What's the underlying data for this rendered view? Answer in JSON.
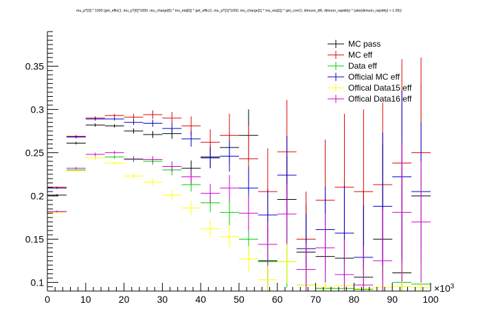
{
  "chart_data": {
    "type": "scatter",
    "title": "mu_pT[0] * 1000 (get_effic(1, mu_pT[0]*1000, mu_charge[0] * mu_eta[0]) * get_effic(1, mu_pT[1]*1000, mu_charge[1] * mu_eta[1]) * get_corr(1, dimuon_dR, dimuon_rapidity) * (abs(dimuon_rapidity) < 1.05))",
    "xlabel": "",
    "ylabel": "",
    "xlim": [
      0,
      100
    ],
    "ylim": [
      0.09,
      0.39
    ],
    "x_exponent_label": "×10",
    "x_exponent_power": "3",
    "x_ticks": [
      "0",
      "10",
      "20",
      "30",
      "40",
      "50",
      "60",
      "70",
      "80",
      "90",
      "100"
    ],
    "y_ticks": [
      "0.1",
      "0.15",
      "0.2",
      "0.25",
      "0.3",
      "0.35"
    ],
    "grid": false,
    "legend_position": "top-right",
    "bin_width": 5,
    "series": [
      {
        "name": "MC pass",
        "color": "#000000",
        "points": [
          [
            2.5,
            0.201,
            0.001
          ],
          [
            7.5,
            0.261,
            0.0015
          ],
          [
            12.5,
            0.282,
            0.002
          ],
          [
            17.5,
            0.281,
            0.002
          ],
          [
            22.5,
            0.275,
            0.003
          ],
          [
            27.5,
            0.271,
            0.004
          ],
          [
            32.5,
            0.272,
            0.006
          ],
          [
            37.5,
            0.232,
            0.009
          ],
          [
            42.5,
            0.245,
            0.013
          ],
          [
            47.5,
            0.256,
            0.018
          ],
          [
            52.5,
            0.27,
            0.03
          ],
          [
            57.5,
            0.125,
            0.04
          ],
          [
            62.5,
            0.196,
            0.05
          ],
          [
            67.5,
            0.135,
            0.055
          ],
          [
            72.5,
            0.13,
            0.07
          ],
          [
            77.5,
            0.128,
            0.09
          ],
          [
            82.5,
            0.106,
            0.1
          ],
          [
            87.5,
            0.15,
            0.11
          ],
          [
            92.5,
            0.111,
            0.12
          ],
          [
            97.5,
            0.2,
            0.13
          ]
        ]
      },
      {
        "name": "MC eff",
        "color": "#e00000",
        "points": [
          [
            2.5,
            0.21,
            0.001
          ],
          [
            7.5,
            0.269,
            0.0015
          ],
          [
            12.5,
            0.29,
            0.002
          ],
          [
            17.5,
            0.293,
            0.002
          ],
          [
            22.5,
            0.291,
            0.004
          ],
          [
            27.5,
            0.294,
            0.005
          ],
          [
            32.5,
            0.29,
            0.007
          ],
          [
            37.5,
            0.281,
            0.011
          ],
          [
            42.5,
            0.262,
            0.015
          ],
          [
            47.5,
            0.27,
            0.025
          ],
          [
            52.5,
            0.243,
            0.038
          ],
          [
            57.5,
            0.205,
            0.05
          ],
          [
            62.5,
            0.251,
            0.06
          ],
          [
            67.5,
            0.15,
            0.055
          ],
          [
            72.5,
            0.195,
            0.07
          ],
          [
            77.5,
            0.21,
            0.085
          ],
          [
            82.5,
            0.205,
            0.095
          ],
          [
            87.5,
            0.213,
            0.095
          ],
          [
            92.5,
            0.238,
            0.12
          ],
          [
            97.5,
            0.25,
            0.11
          ]
        ]
      },
      {
        "name": "Data eff",
        "color": "#00cc00",
        "points": [
          [
            2.5,
            0.182,
            0.001
          ],
          [
            7.5,
            0.23,
            0.0015
          ],
          [
            12.5,
            0.244,
            0.002
          ],
          [
            17.5,
            0.245,
            0.002
          ],
          [
            22.5,
            0.242,
            0.003
          ],
          [
            27.5,
            0.24,
            0.004
          ],
          [
            32.5,
            0.23,
            0.006
          ],
          [
            37.5,
            0.213,
            0.008
          ],
          [
            42.5,
            0.192,
            0.011
          ],
          [
            47.5,
            0.181,
            0.015
          ],
          [
            52.5,
            0.15,
            0.02
          ],
          [
            57.5,
            0.124,
            0.025
          ],
          [
            62.5,
            0.124,
            0.03
          ],
          [
            67.5,
            0.097,
            0.03
          ],
          [
            72.5,
            0.093,
            0.03
          ],
          [
            77.5,
            0.093,
            0.035
          ],
          [
            82.5,
            0.092,
            0.035
          ],
          [
            87.5,
            0.094,
            0.04
          ],
          [
            92.5,
            0.1,
            0.04
          ],
          [
            97.5,
            0.098,
            0.04
          ]
        ]
      },
      {
        "name": "Official MC eff",
        "color": "#0000cc",
        "points": [
          [
            2.5,
            0.209,
            0.001
          ],
          [
            7.5,
            0.268,
            0.0015
          ],
          [
            12.5,
            0.289,
            0.002
          ],
          [
            17.5,
            0.289,
            0.002
          ],
          [
            22.5,
            0.285,
            0.003
          ],
          [
            27.5,
            0.284,
            0.004
          ],
          [
            32.5,
            0.278,
            0.006
          ],
          [
            37.5,
            0.266,
            0.009
          ],
          [
            42.5,
            0.244,
            0.012
          ],
          [
            47.5,
            0.246,
            0.018
          ],
          [
            52.5,
            0.209,
            0.025
          ],
          [
            57.5,
            0.178,
            0.03
          ],
          [
            62.5,
            0.224,
            0.045
          ],
          [
            67.5,
            0.139,
            0.04
          ],
          [
            72.5,
            0.161,
            0.05
          ],
          [
            77.5,
            0.157,
            0.055
          ],
          [
            82.5,
            0.129,
            0.06
          ],
          [
            87.5,
            0.188,
            0.085
          ],
          [
            92.5,
            0.222,
            0.1
          ],
          [
            97.5,
            0.205,
            0.08
          ]
        ]
      },
      {
        "name": "Offical Data15 eff",
        "color": "#ffff00",
        "points": [
          [
            2.5,
            0.181,
            0.001
          ],
          [
            7.5,
            0.229,
            0.0015
          ],
          [
            12.5,
            0.244,
            0.002
          ],
          [
            17.5,
            0.238,
            0.002
          ],
          [
            22.5,
            0.223,
            0.003
          ],
          [
            27.5,
            0.216,
            0.004
          ],
          [
            32.5,
            0.201,
            0.006
          ],
          [
            37.5,
            0.186,
            0.008
          ],
          [
            42.5,
            0.162,
            0.01
          ],
          [
            47.5,
            0.153,
            0.012
          ],
          [
            52.5,
            0.127,
            0.015
          ],
          [
            57.5,
            0.103,
            0.02
          ],
          [
            62.5,
            0.124,
            0.025
          ],
          [
            67.5,
            0.097,
            0.02
          ],
          [
            72.5,
            0.094,
            0.025
          ],
          [
            77.5,
            0.096,
            0.025
          ],
          [
            82.5,
            0.093,
            0.025
          ],
          [
            87.5,
            0.094,
            0.025
          ],
          [
            92.5,
            0.095,
            0.03
          ],
          [
            97.5,
            0.094,
            0.03
          ]
        ]
      },
      {
        "name": "Offical Data16 eff",
        "color": "#cc00cc",
        "points": [
          [
            2.5,
            0.182,
            0.001
          ],
          [
            7.5,
            0.232,
            0.0015
          ],
          [
            12.5,
            0.248,
            0.002
          ],
          [
            17.5,
            0.25,
            0.002
          ],
          [
            22.5,
            0.243,
            0.003
          ],
          [
            27.5,
            0.242,
            0.004
          ],
          [
            32.5,
            0.234,
            0.006
          ],
          [
            37.5,
            0.222,
            0.008
          ],
          [
            42.5,
            0.203,
            0.011
          ],
          [
            47.5,
            0.209,
            0.015
          ],
          [
            52.5,
            0.18,
            0.02
          ],
          [
            57.5,
            0.144,
            0.025
          ],
          [
            62.5,
            0.179,
            0.035
          ],
          [
            67.5,
            0.115,
            0.03
          ],
          [
            72.5,
            0.14,
            0.04
          ],
          [
            77.5,
            0.109,
            0.04
          ],
          [
            82.5,
            0.097,
            0.045
          ],
          [
            87.5,
            0.125,
            0.06
          ],
          [
            92.5,
            0.181,
            0.08
          ],
          [
            97.5,
            0.17,
            0.07
          ]
        ]
      }
    ]
  }
}
